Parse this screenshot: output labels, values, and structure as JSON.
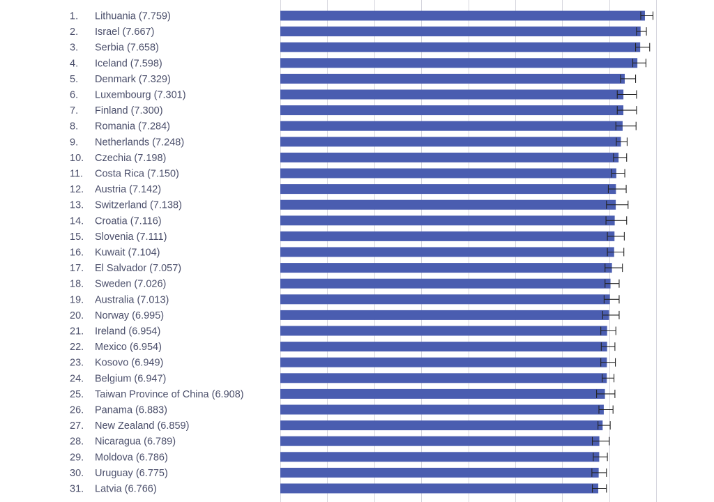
{
  "chart_data": {
    "type": "bar",
    "orientation": "horizontal",
    "bar_color": "#4a5db0",
    "error_bar_color": "#222222",
    "grid": true,
    "xlim": [
      0,
      8
    ],
    "entries": [
      {
        "rank": "1.",
        "name": "Lithuania",
        "value": 7.759,
        "label": "Lithuania (7.759)",
        "err_low": 7.67,
        "err_high": 7.93
      },
      {
        "rank": "2.",
        "name": "Israel",
        "value": 7.667,
        "label": "Israel (7.667)",
        "err_low": 7.58,
        "err_high": 7.79
      },
      {
        "rank": "3.",
        "name": "Serbia",
        "value": 7.658,
        "label": "Serbia (7.658)",
        "err_low": 7.56,
        "err_high": 7.86
      },
      {
        "rank": "4.",
        "name": "Iceland",
        "value": 7.598,
        "label": "Iceland (7.598)",
        "err_low": 7.5,
        "err_high": 7.78
      },
      {
        "rank": "5.",
        "name": "Denmark",
        "value": 7.329,
        "label": "Denmark (7.329)",
        "err_low": 7.24,
        "err_high": 7.56
      },
      {
        "rank": "6.",
        "name": "Luxembourg",
        "value": 7.301,
        "label": "Luxembourg (7.301)",
        "err_low": 7.17,
        "err_high": 7.58
      },
      {
        "rank": "7.",
        "name": "Finland",
        "value": 7.3,
        "label": "Finland (7.300)",
        "err_low": 7.17,
        "err_high": 7.58
      },
      {
        "rank": "8.",
        "name": "Romania",
        "value": 7.284,
        "label": "Romania (7.284)",
        "err_low": 7.14,
        "err_high": 7.57
      },
      {
        "rank": "9.",
        "name": "Netherlands",
        "value": 7.248,
        "label": "Netherlands (7.248)",
        "err_low": 7.15,
        "err_high": 7.38
      },
      {
        "rank": "10.",
        "name": "Czechia",
        "value": 7.198,
        "label": "Czechia (7.198)",
        "err_low": 7.09,
        "err_high": 7.37
      },
      {
        "rank": "11.",
        "name": "Costa Rica",
        "value": 7.15,
        "label": "Costa Rica (7.150)",
        "err_low": 7.05,
        "err_high": 7.33
      },
      {
        "rank": "12.",
        "name": "Austria",
        "value": 7.142,
        "label": "Austria (7.142)",
        "err_low": 6.98,
        "err_high": 7.36
      },
      {
        "rank": "13.",
        "name": "Switzerland",
        "value": 7.138,
        "label": "Switzerland (7.138)",
        "err_low": 6.94,
        "err_high": 7.4
      },
      {
        "rank": "14.",
        "name": "Croatia",
        "value": 7.116,
        "label": "Croatia (7.116)",
        "err_low": 6.93,
        "err_high": 7.37
      },
      {
        "rank": "15.",
        "name": "Slovenia",
        "value": 7.111,
        "label": "Slovenia (7.111)",
        "err_low": 6.96,
        "err_high": 7.32
      },
      {
        "rank": "16.",
        "name": "Kuwait",
        "value": 7.104,
        "label": "Kuwait (7.104)",
        "err_low": 6.96,
        "err_high": 7.31
      },
      {
        "rank": "17.",
        "name": "El Salvador",
        "value": 7.057,
        "label": "El Salvador (7.057)",
        "err_low": 6.91,
        "err_high": 7.28
      },
      {
        "rank": "18.",
        "name": "Sweden",
        "value": 7.026,
        "label": "Sweden (7.026)",
        "err_low": 6.91,
        "err_high": 7.21
      },
      {
        "rank": "19.",
        "name": "Australia",
        "value": 7.013,
        "label": "Australia (7.013)",
        "err_low": 6.89,
        "err_high": 7.21
      },
      {
        "rank": "20.",
        "name": "Norway",
        "value": 6.995,
        "label": "Norway (6.995)",
        "err_low": 6.86,
        "err_high": 7.21
      },
      {
        "rank": "21.",
        "name": "Ireland",
        "value": 6.954,
        "label": "Ireland (6.954)",
        "err_low": 6.82,
        "err_high": 7.14
      },
      {
        "rank": "22.",
        "name": "Mexico",
        "value": 6.954,
        "label": "Mexico (6.954)",
        "err_low": 6.83,
        "err_high": 7.12
      },
      {
        "rank": "23.",
        "name": "Kosovo",
        "value": 6.949,
        "label": "Kosovo (6.949)",
        "err_low": 6.82,
        "err_high": 7.13
      },
      {
        "rank": "24.",
        "name": "Belgium",
        "value": 6.947,
        "label": "Belgium (6.947)",
        "err_low": 6.85,
        "err_high": 7.1
      },
      {
        "rank": "25.",
        "name": "Taiwan Province of China",
        "value": 6.908,
        "label": "Taiwan Province of China (6.908)",
        "err_low": 6.73,
        "err_high": 7.12
      },
      {
        "rank": "26.",
        "name": "Panama",
        "value": 6.883,
        "label": "Panama (6.883)",
        "err_low": 6.78,
        "err_high": 7.08
      },
      {
        "rank": "27.",
        "name": "New Zealand",
        "value": 6.859,
        "label": "New Zealand (6.859)",
        "err_low": 6.76,
        "err_high": 7.02
      },
      {
        "rank": "28.",
        "name": "Nicaragua",
        "value": 6.789,
        "label": "Nicaragua (6.789)",
        "err_low": 6.64,
        "err_high": 7.0
      },
      {
        "rank": "29.",
        "name": "Moldova",
        "value": 6.786,
        "label": "Moldova (6.786)",
        "err_low": 6.66,
        "err_high": 6.96
      },
      {
        "rank": "30.",
        "name": "Uruguay",
        "value": 6.775,
        "label": "Uruguay (6.775)",
        "err_low": 6.63,
        "err_high": 6.94
      },
      {
        "rank": "31.",
        "name": "Latvia",
        "value": 6.766,
        "label": "Latvia (6.766)",
        "err_low": 6.64,
        "err_high": 6.94
      }
    ]
  }
}
